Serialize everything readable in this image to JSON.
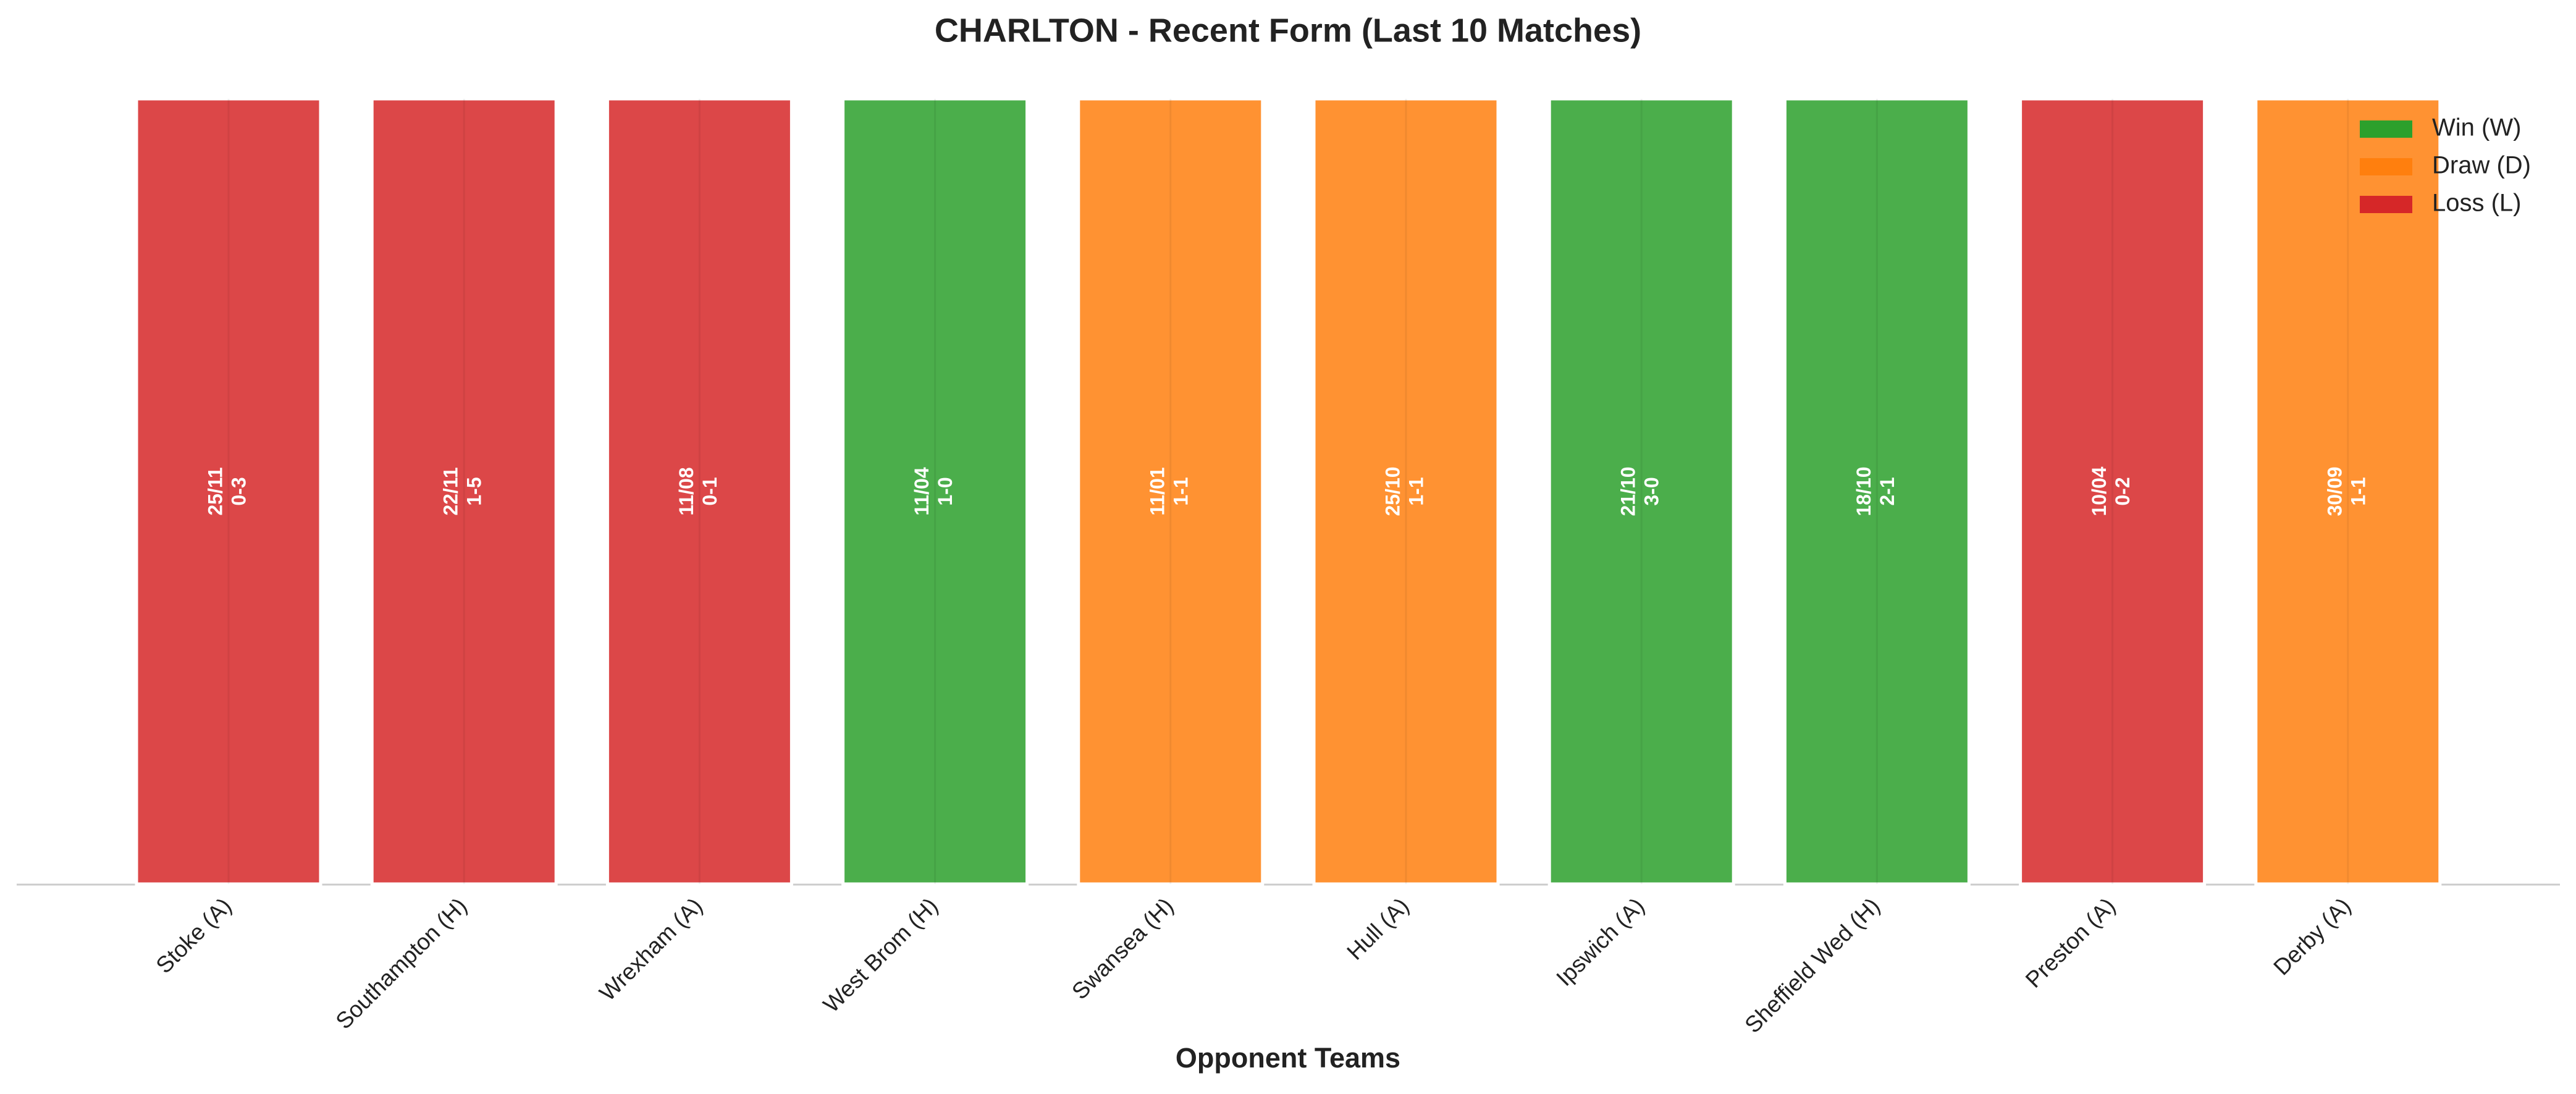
{
  "chart_data": {
    "type": "bar",
    "title": "CHARLTON - Recent Form (Last 10 Matches)",
    "x_label": "Opponent Teams",
    "categories": [
      "Stoke (A)",
      "Southampton (H)",
      "Wrexham (A)",
      "West Brom (H)",
      "Swansea (H)",
      "Hull (A)",
      "Ipswich (A)",
      "Sheffield Wed (H)",
      "Preston (A)",
      "Derby (A)"
    ],
    "values": [
      1,
      1,
      1,
      1,
      1,
      1,
      1,
      1,
      1,
      1
    ],
    "dates": [
      "25/11",
      "22/11",
      "11/08",
      "11/04",
      "11/01",
      "25/10",
      "21/10",
      "18/10",
      "10/04",
      "30/09"
    ],
    "scores": [
      "0-3",
      "1-5",
      "0-1",
      "1-0",
      "1-1",
      "1-1",
      "3-0",
      "2-1",
      "0-2",
      "1-1"
    ],
    "colors": [
      "#d62728",
      "#d62728",
      "#d62728",
      "#2ca02c",
      "#ff7f0e",
      "#ff7f0e",
      "#2ca02c",
      "#2ca02c",
      "#d62728",
      "#ff7f0e"
    ],
    "ylim": [
      0,
      1
    ],
    "legend": [
      {
        "name": "Win (W)",
        "color": "#2ca02c"
      },
      {
        "name": "Draw (D)",
        "color": "#ff7f0e"
      },
      {
        "name": "Loss (L)",
        "color": "#d62728"
      }
    ],
    "legend_position": "upper right"
  }
}
